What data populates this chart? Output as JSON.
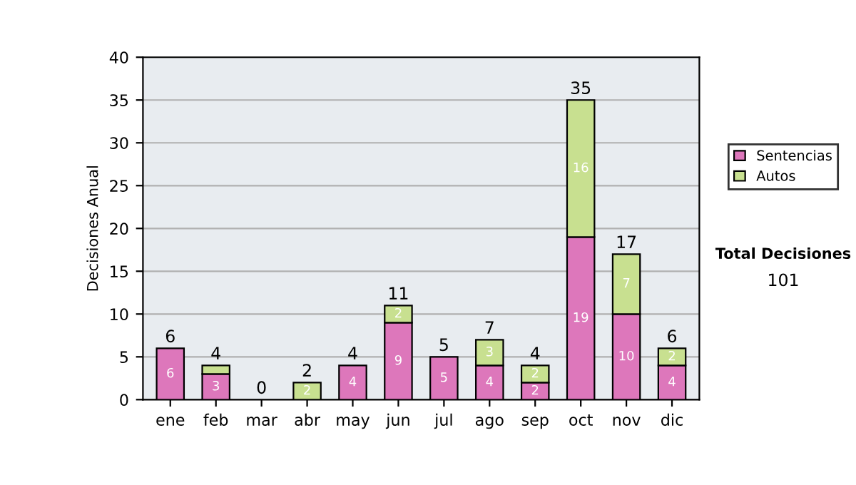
{
  "chart_data": {
    "type": "bar",
    "stacked": true,
    "ylabel": "Decisiones Anual",
    "categories": [
      "ene",
      "feb",
      "mar",
      "abr",
      "may",
      "jun",
      "jul",
      "ago",
      "sep",
      "oct",
      "nov",
      "dic"
    ],
    "series": [
      {
        "name": "Sentencias",
        "color": "#dd77bb",
        "values": [
          6,
          3,
          0,
          0,
          4,
          9,
          5,
          4,
          2,
          19,
          10,
          4
        ],
        "value_labels": [
          "6",
          "3",
          null,
          null,
          "4",
          "9",
          "5",
          "4",
          "2",
          "19",
          "10",
          "4"
        ]
      },
      {
        "name": "Autos",
        "color": "#c8e090",
        "values": [
          0,
          1,
          0,
          2,
          0,
          2,
          0,
          3,
          2,
          16,
          7,
          2
        ],
        "value_labels": [
          null,
          null,
          null,
          "2",
          null,
          "2",
          null,
          "3",
          "2",
          "16",
          "7",
          "2"
        ]
      }
    ],
    "totals": [
      "6",
      "4",
      "0",
      "2",
      "4",
      "11",
      "5",
      "7",
      "4",
      "35",
      "17",
      "6"
    ],
    "ylim": [
      0,
      40
    ],
    "yticks": [
      0,
      5,
      10,
      15,
      20,
      25,
      30,
      35,
      40
    ],
    "grid": "y",
    "legend": "right",
    "annotations": [
      "Total Decisiones",
      "101"
    ]
  }
}
